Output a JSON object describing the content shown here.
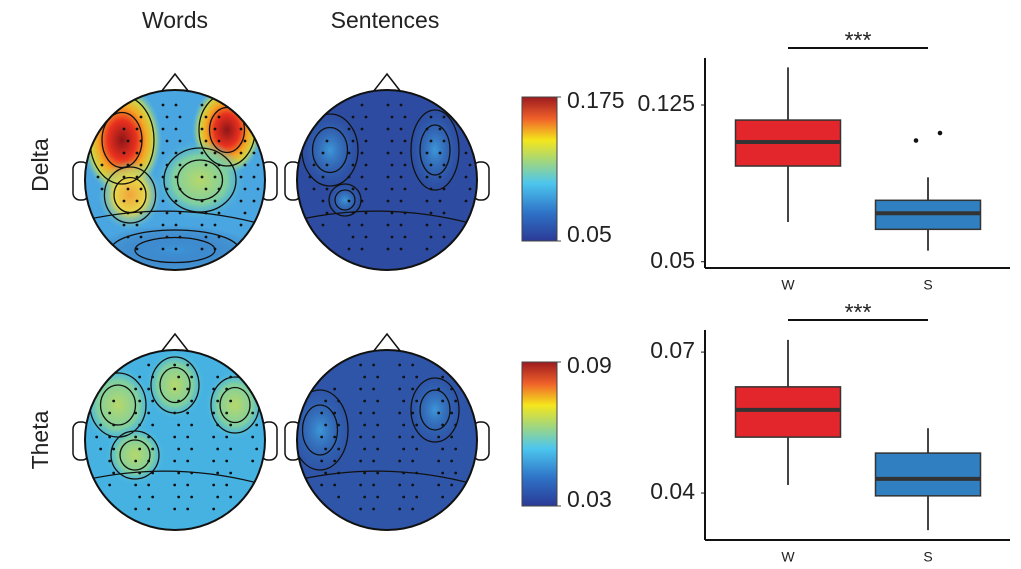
{
  "topomaps": {
    "columns": [
      "Words",
      "Sentences"
    ],
    "rows": [
      {
        "label": "Delta",
        "colorbar": {
          "lim": [
            0.05,
            0.175
          ],
          "ticks": [
            0.05,
            0.175
          ]
        }
      },
      {
        "label": "Theta",
        "colorbar": {
          "lim": [
            0.03,
            0.09
          ],
          "ticks": [
            0.03,
            0.09
          ]
        }
      }
    ]
  },
  "chart_data": [
    {
      "type": "box",
      "categories": [
        "W",
        "S"
      ],
      "annotation": "***",
      "ylim": [
        0.047,
        0.1475
      ],
      "yticks": [
        0.05,
        0.125
      ],
      "series": [
        {
          "color": "#e3262b",
          "whisker_low": 0.069,
          "q1": 0.0958,
          "median": 0.1073,
          "q3": 0.1178,
          "whisker_high": 0.143
        },
        {
          "color": "#2f7fc1",
          "whisker_low": 0.0553,
          "q1": 0.0655,
          "median": 0.0732,
          "q3": 0.0794,
          "whisker_high": 0.0904,
          "outliers": [
            0.1116,
            0.108
          ]
        }
      ]
    },
    {
      "type": "box",
      "categories": [
        "W",
        "S"
      ],
      "annotation": "***",
      "ylim": [
        0.03,
        0.0747
      ],
      "yticks": [
        0.04,
        0.07
      ],
      "series": [
        {
          "color": "#e3262b",
          "whisker_low": 0.0417,
          "q1": 0.0519,
          "median": 0.0577,
          "q3": 0.0626,
          "whisker_high": 0.0726
        },
        {
          "color": "#2f7fc1",
          "whisker_low": 0.0321,
          "q1": 0.0394,
          "median": 0.043,
          "q3": 0.0485,
          "whisker_high": 0.0538
        }
      ]
    }
  ]
}
